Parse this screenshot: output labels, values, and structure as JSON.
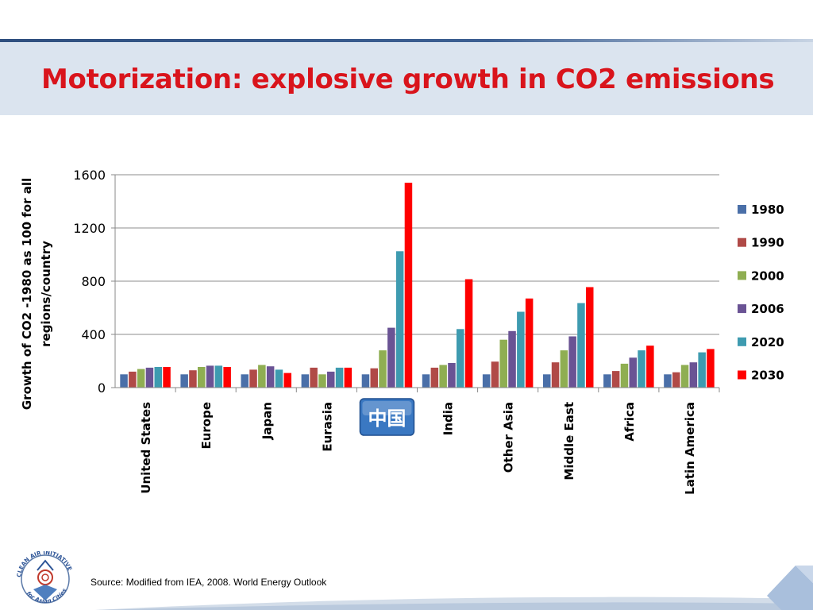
{
  "slide": {
    "title": "Motorization: explosive growth in CO2 emissions",
    "source": "Source: Modified from IEA, 2008. World Energy Outlook",
    "logo_text": "CLEAN AIR INITIATIVE for Asian Cities"
  },
  "colors": {
    "title": "#d9141c",
    "band": "#dbe4ef",
    "badge": "#3a78c2"
  },
  "chart_data": {
    "type": "bar",
    "ylabel": "Growth of CO2 -1980 as 100 for all regions/country",
    "ylabel_lines": [
      "Growth of CO2 -1980 as 100 for all",
      "regions/country"
    ],
    "ylim": [
      0,
      1600
    ],
    "yticks": [
      0,
      400,
      800,
      1200,
      1600
    ],
    "grid": true,
    "legend_position": "right",
    "categories": [
      "United States",
      "Europe",
      "Japan",
      "Eurasia",
      "中国",
      "India",
      "Other Asia",
      "Middle East",
      "Africa",
      "Latin America"
    ],
    "highlighted_category": "中国",
    "series": [
      {
        "name": "1980",
        "color": "#4a6fa8",
        "values": [
          100,
          100,
          100,
          100,
          100,
          100,
          100,
          100,
          100,
          100
        ]
      },
      {
        "name": "1990",
        "color": "#b04a47",
        "values": [
          120,
          130,
          135,
          150,
          145,
          150,
          195,
          190,
          125,
          115
        ]
      },
      {
        "name": "2000",
        "color": "#8fae52",
        "values": [
          140,
          155,
          170,
          100,
          280,
          170,
          360,
          280,
          180,
          170
        ]
      },
      {
        "name": "2006",
        "color": "#6a5394",
        "values": [
          150,
          165,
          160,
          120,
          450,
          185,
          425,
          385,
          225,
          190
        ]
      },
      {
        "name": "2020",
        "color": "#3e9bb0",
        "values": [
          155,
          165,
          135,
          150,
          1025,
          440,
          570,
          635,
          280,
          265
        ]
      },
      {
        "name": "2030",
        "color": "#ff0000",
        "values": [
          155,
          155,
          110,
          150,
          1540,
          815,
          670,
          755,
          315,
          290
        ]
      }
    ]
  }
}
